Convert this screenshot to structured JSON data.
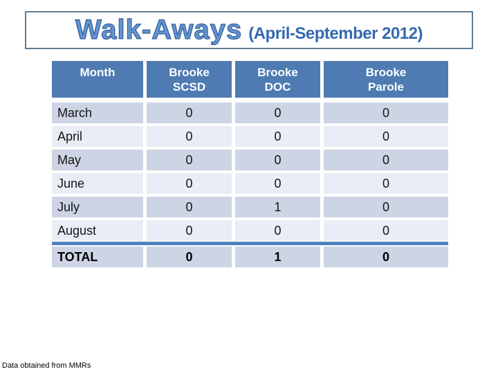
{
  "title": {
    "main": "Walk-Aways",
    "subtitle": "(April-September 2012)"
  },
  "table": {
    "headers": [
      {
        "line1": "Month",
        "line2": ""
      },
      {
        "line1": "Brooke",
        "line2": "SCSD"
      },
      {
        "line1": "Brooke",
        "line2": "DOC"
      },
      {
        "line1": "Brooke",
        "line2": "Parole"
      }
    ],
    "rows": [
      {
        "month": "March",
        "scsd": "0",
        "doc": "0",
        "parole": "0"
      },
      {
        "month": "April",
        "scsd": "0",
        "doc": "0",
        "parole": "0"
      },
      {
        "month": "May",
        "scsd": "0",
        "doc": "0",
        "parole": "0"
      },
      {
        "month": "June",
        "scsd": "0",
        "doc": "0",
        "parole": "0"
      },
      {
        "month": "July",
        "scsd": "0",
        "doc": "1",
        "parole": "0"
      },
      {
        "month": "August",
        "scsd": "0",
        "doc": "0",
        "parole": "0"
      }
    ],
    "total": {
      "label": "TOTAL",
      "scsd": "0",
      "doc": "1",
      "parole": "0"
    }
  },
  "footer": {
    "note": "Data obtained from MMRs"
  },
  "colors": {
    "header-bg": "#4e7bb2",
    "band-dark": "#cdd4e4",
    "band-light": "#e9edf5",
    "divider": "#4f81bd",
    "title-border": "#5e7d96",
    "title-fill": "#6593cf",
    "title-outline": "#2f5e9e",
    "subtitle-color": "#3568b0"
  }
}
